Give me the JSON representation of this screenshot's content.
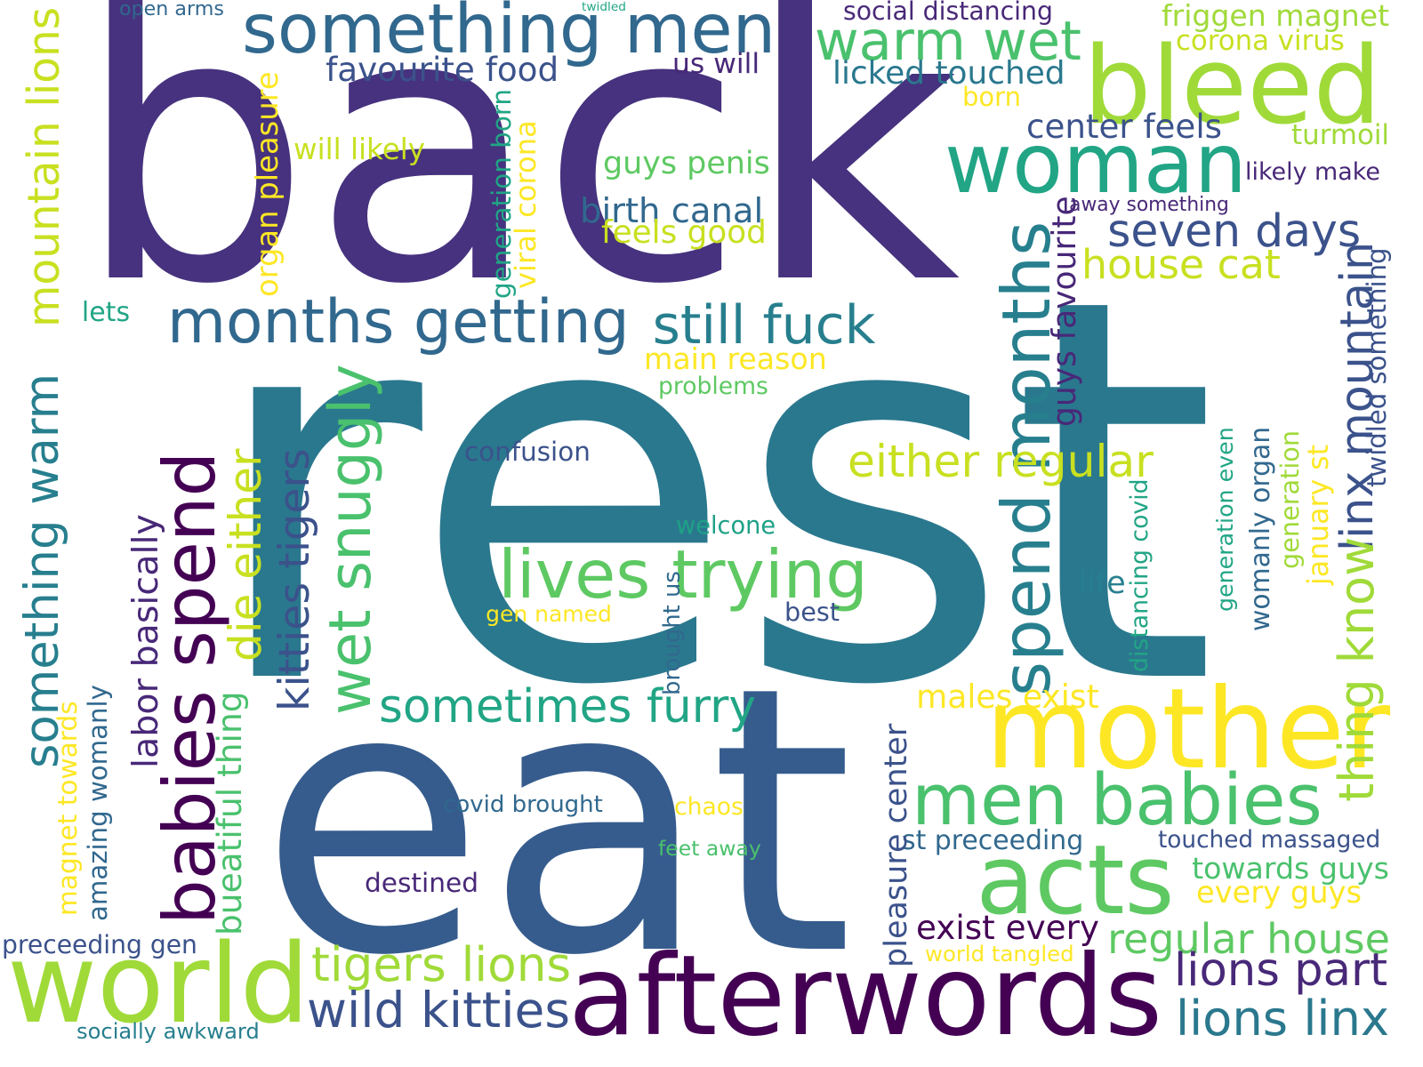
{
  "palette": {
    "c1": "#46327e",
    "c2": "#2a788e",
    "c3": "#365c8d",
    "c4": "#a0da39",
    "c5": "#440154",
    "c6": "#fde725",
    "c7": "#21a585",
    "c8": "#4ac16d",
    "c9": "#1fa187",
    "c10": "#c8e020",
    "c11": "#5ec962",
    "c12": "#277f8e",
    "c13": "#31688e",
    "c14": "#3b528b",
    "c15": "#482878"
  },
  "words": [
    {
      "text": "back",
      "color": "c1",
      "vertical": false
    },
    {
      "text": "rest",
      "color": "c2",
      "vertical": false
    },
    {
      "text": "eat",
      "color": "c3",
      "vertical": false
    },
    {
      "text": "something men",
      "color": "c13",
      "vertical": false
    },
    {
      "text": "bleed",
      "color": "c4",
      "vertical": false
    },
    {
      "text": "woman",
      "color": "c7",
      "vertical": false
    },
    {
      "text": "warm wet",
      "color": "c8",
      "vertical": false
    },
    {
      "text": "world",
      "color": "c4",
      "vertical": false
    },
    {
      "text": "afterwords",
      "color": "c5",
      "vertical": false
    },
    {
      "text": "mother",
      "color": "c6",
      "vertical": false
    },
    {
      "text": "acts",
      "color": "c11",
      "vertical": false
    },
    {
      "text": "men babies",
      "color": "c8",
      "vertical": false
    },
    {
      "text": "months getting",
      "color": "c13",
      "vertical": false
    },
    {
      "text": "lives trying",
      "color": "c11",
      "vertical": false
    },
    {
      "text": "still fuck",
      "color": "c12",
      "vertical": false
    },
    {
      "text": "babies spend",
      "color": "c5",
      "vertical": true
    },
    {
      "text": "wet snuggly",
      "color": "c8",
      "vertical": true
    },
    {
      "text": "spend months",
      "color": "c12",
      "vertical": true
    },
    {
      "text": "something warm",
      "color": "c12",
      "vertical": true
    },
    {
      "text": "mountain lions",
      "color": "c10",
      "vertical": true
    },
    {
      "text": "sometimes furry",
      "color": "c7",
      "vertical": false
    },
    {
      "text": "seven days",
      "color": "c14",
      "vertical": false
    },
    {
      "text": "house cat",
      "color": "c10",
      "vertical": false
    },
    {
      "text": "either regular",
      "color": "c10",
      "vertical": false
    },
    {
      "text": "regular house",
      "color": "c11",
      "vertical": false
    },
    {
      "text": "tigers lions",
      "color": "c4",
      "vertical": false
    },
    {
      "text": "wild kitties",
      "color": "c14",
      "vertical": false
    },
    {
      "text": "lions part",
      "color": "c15",
      "vertical": false
    },
    {
      "text": "lions linx",
      "color": "c2",
      "vertical": false
    },
    {
      "text": "linx mountain",
      "color": "c14",
      "vertical": true
    },
    {
      "text": "thing know",
      "color": "c4",
      "vertical": true
    },
    {
      "text": "kitties tigers",
      "color": "c14",
      "vertical": true
    },
    {
      "text": "die either",
      "color": "c10",
      "vertical": true
    },
    {
      "text": "favourite food",
      "color": "c14",
      "vertical": false
    },
    {
      "text": "licked touched",
      "color": "c2",
      "vertical": false
    },
    {
      "text": "friggen magnet",
      "color": "c4",
      "vertical": false
    },
    {
      "text": "corona virus",
      "color": "c10",
      "vertical": false
    },
    {
      "text": "turmoil",
      "color": "c4",
      "vertical": false
    },
    {
      "text": "social distancing",
      "color": "c15",
      "vertical": false
    },
    {
      "text": "open arms",
      "color": "c13",
      "vertical": false
    },
    {
      "text": "twidled",
      "color": "c7",
      "vertical": false
    },
    {
      "text": "us will",
      "color": "c15",
      "vertical": false
    },
    {
      "text": "born",
      "color": "c6",
      "vertical": false
    },
    {
      "text": "center feels",
      "color": "c14",
      "vertical": false
    },
    {
      "text": "likely make",
      "color": "c15",
      "vertical": false
    },
    {
      "text": "away something",
      "color": "c15",
      "vertical": false
    },
    {
      "text": "guys penis",
      "color": "c11",
      "vertical": false
    },
    {
      "text": "birth canal",
      "color": "c13",
      "vertical": false
    },
    {
      "text": "feels good",
      "color": "c10",
      "vertical": false
    },
    {
      "text": "will likely",
      "color": "c10",
      "vertical": false
    },
    {
      "text": "lets",
      "color": "c7",
      "vertical": false
    },
    {
      "text": "main reason",
      "color": "c6",
      "vertical": false
    },
    {
      "text": "problems",
      "color": "c11",
      "vertical": false
    },
    {
      "text": "confusion",
      "color": "c14",
      "vertical": false
    },
    {
      "text": "welcone",
      "color": "c9",
      "vertical": false
    },
    {
      "text": "gen named",
      "color": "c6",
      "vertical": false
    },
    {
      "text": "best",
      "color": "c14",
      "vertical": false
    },
    {
      "text": "life",
      "color": "c12",
      "vertical": false
    },
    {
      "text": "males exist",
      "color": "c6",
      "vertical": false
    },
    {
      "text": "covid brought",
      "color": "c13",
      "vertical": false
    },
    {
      "text": "chaos",
      "color": "c6",
      "vertical": false
    },
    {
      "text": "feet away",
      "color": "c8",
      "vertical": false
    },
    {
      "text": "st preceeding",
      "color": "c13",
      "vertical": false
    },
    {
      "text": "touched massaged",
      "color": "c14",
      "vertical": false
    },
    {
      "text": "towards guys",
      "color": "c8",
      "vertical": false
    },
    {
      "text": "every guys",
      "color": "c6",
      "vertical": false
    },
    {
      "text": "destined",
      "color": "c15",
      "vertical": false
    },
    {
      "text": "exist every",
      "color": "c5",
      "vertical": false
    },
    {
      "text": "world tangled",
      "color": "c6",
      "vertical": false
    },
    {
      "text": "preceeding gen",
      "color": "c14",
      "vertical": false
    },
    {
      "text": "socially awkward",
      "color": "c12",
      "vertical": false
    },
    {
      "text": "organ pleasure",
      "color": "c6",
      "vertical": true
    },
    {
      "text": "generation born",
      "color": "c7",
      "vertical": true
    },
    {
      "text": "viral corona",
      "color": "c6",
      "vertical": true
    },
    {
      "text": "guys favourite",
      "color": "c15",
      "vertical": true
    },
    {
      "text": "twidled something",
      "color": "c14",
      "vertical": true
    },
    {
      "text": "labor basically",
      "color": "c15",
      "vertical": true
    },
    {
      "text": "magnet towards",
      "color": "c6",
      "vertical": true
    },
    {
      "text": "amazing womanly",
      "color": "c13",
      "vertical": true
    },
    {
      "text": "bueatiful thing",
      "color": "c8",
      "vertical": true
    },
    {
      "text": "brought us",
      "color": "c13",
      "vertical": true
    },
    {
      "text": "pleasure center",
      "color": "c14",
      "vertical": true
    },
    {
      "text": "womanly organ",
      "color": "c13",
      "vertical": true
    },
    {
      "text": "distancing covid",
      "color": "c7",
      "vertical": true
    },
    {
      "text": "generation even",
      "color": "c7",
      "vertical": true
    },
    {
      "text": "generation",
      "color": "c4",
      "vertical": true
    },
    {
      "text": "january st",
      "color": "c6",
      "vertical": true
    }
  ]
}
